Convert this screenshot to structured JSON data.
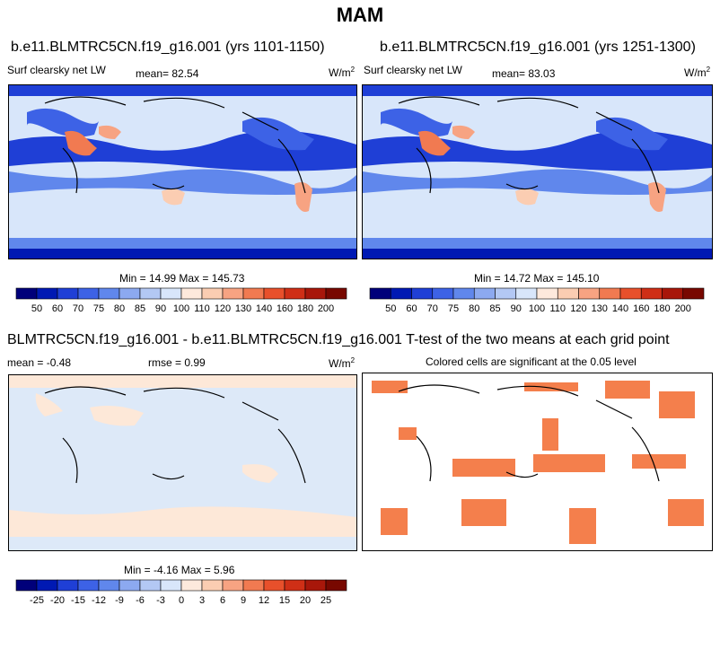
{
  "season": "MAM",
  "panels": {
    "p1": {
      "title": "b.e11.BLMTRC5CN.f19_g16.001 (yrs 1101-1150)",
      "left_label": "Surf clearsky net LW",
      "mean_label": "mean=  82.54",
      "unit_base": "W/m",
      "unit_exp": "2",
      "minmax": "Min =  14.99 Max = 145.73"
    },
    "p2": {
      "title": "b.e11.BLMTRC5CN.f19_g16.001 (yrs 1251-1300)",
      "left_label": "Surf clearsky net LW",
      "mean_label": "mean=  83.03",
      "unit_base": "W/m",
      "unit_exp": "2",
      "minmax": "Min =  14.72 Max = 145.10"
    },
    "p3": {
      "title": "BLMTRC5CN.f19_g16.001 - b.e11.BLMTRC5CN.f19_g16.001",
      "mean_label": "mean =  -0.48",
      "rmse_label": "rmse =   0.99",
      "unit_base": "W/m",
      "unit_exp": "2",
      "minmax": "Min =  -4.16 Max =   5.96"
    },
    "p4": {
      "title": "T-test of the two means at each grid point",
      "subtitle": "Colored cells are significant at the 0.05 level"
    }
  },
  "colorbar_field": {
    "labels": [
      "50",
      "60",
      "70",
      "75",
      "80",
      "85",
      "90",
      "100",
      "110",
      "120",
      "130",
      "140",
      "160",
      "180",
      "200"
    ],
    "colors": [
      "#00007a",
      "#0019b3",
      "#1f3fd6",
      "#3d62e6",
      "#6087ec",
      "#8ca9f0",
      "#b3c8f4",
      "#d8e6fa",
      "#fde9dc",
      "#fbcdb2",
      "#f7a382",
      "#f17a51",
      "#e8502b",
      "#cf2f16",
      "#a8170a",
      "#780800"
    ]
  },
  "colorbar_diff": {
    "labels": [
      "-25",
      "-20",
      "-15",
      "-12",
      "-9",
      "-6",
      "-3",
      "0",
      "3",
      "6",
      "9",
      "12",
      "15",
      "20",
      "25"
    ],
    "colors": [
      "#00007a",
      "#0019b3",
      "#1f3fd6",
      "#3d62e6",
      "#6087ec",
      "#8ca9f0",
      "#b3c8f4",
      "#d8e6fa",
      "#fde9dc",
      "#fbcdb2",
      "#f7a382",
      "#f17a51",
      "#e8502b",
      "#cf2f16",
      "#a8170a",
      "#780800"
    ]
  },
  "colors": {
    "land_outline": "#000000",
    "diff_background": "#dde9f8",
    "diff_positive": "#fde8d8",
    "significant": "#f47f4c"
  }
}
